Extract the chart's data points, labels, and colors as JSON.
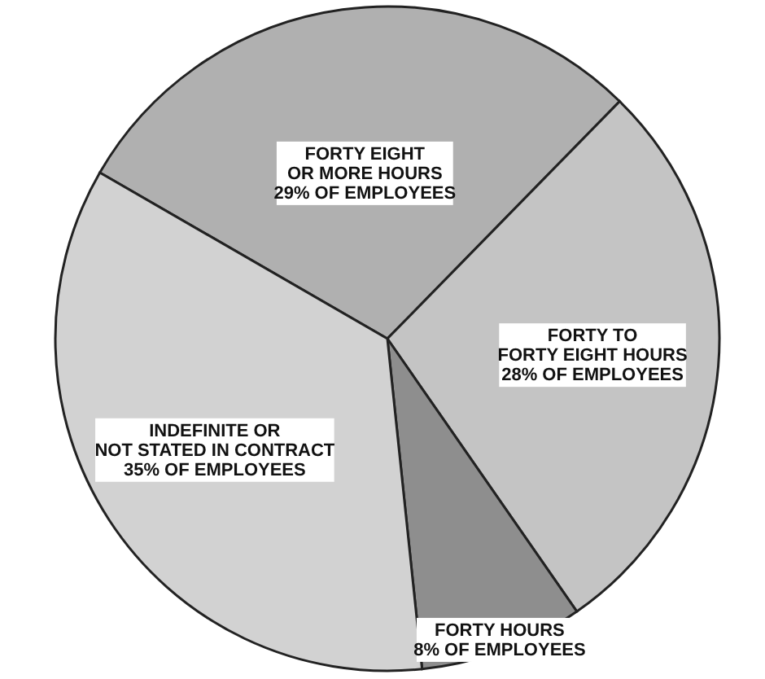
{
  "chart_data": {
    "type": "pie",
    "categories": [
      "FORTY EIGHT\nOR MORE HOURS",
      "FORTY TO\nFORTY EIGHT HOURS",
      "FORTY HOURS",
      "INDEFINITE OR\nNOT STATED IN CONTRACT"
    ],
    "values": [
      29,
      28,
      8,
      35
    ],
    "colors": [
      "#b0b0b0",
      "#c4c4c4",
      "#8e8e8e",
      "#d2d2d2"
    ],
    "value_labels": [
      "29% OF EMPLOYEES",
      "28% OF EMPLOYEES",
      "8% OF EMPLOYEES",
      "35% OF EMPLOYEES"
    ]
  }
}
